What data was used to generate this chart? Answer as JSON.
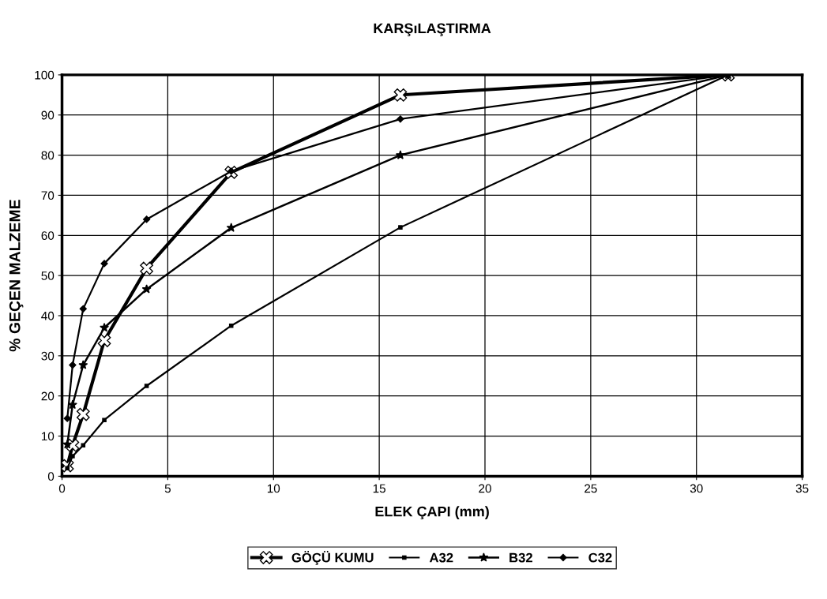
{
  "chart_data": {
    "type": "line",
    "title": "KARŞıLAŞTIRMA",
    "xlabel": "ELEK ÇAPI (mm)",
    "ylabel": "% GEÇEN MALZEME",
    "x": [
      0.25,
      0.5,
      1,
      2,
      4,
      8,
      16,
      31.5
    ],
    "series": [
      {
        "name": "GÖÇÜ KUMU",
        "color": "#000000",
        "marker": "cross",
        "values": [
          2.6,
          7.7,
          15.4,
          33.8,
          51.8,
          75.7,
          95,
          100
        ]
      },
      {
        "name": "A32",
        "color": "#000000",
        "marker": "square",
        "values": [
          2,
          5,
          7.7,
          14,
          22.5,
          37.5,
          62,
          100
        ]
      },
      {
        "name": "B32",
        "color": "#000000",
        "marker": "star",
        "values": [
          7.9,
          17.8,
          27.7,
          37,
          46.6,
          61.9,
          80,
          100
        ]
      },
      {
        "name": "C32",
        "color": "#000000",
        "marker": "diamond",
        "values": [
          14.4,
          27.7,
          41.7,
          53,
          64,
          76,
          89,
          100
        ]
      }
    ],
    "xlim": [
      0,
      35
    ],
    "xticks": [
      0,
      5,
      10,
      15,
      20,
      25,
      30,
      35
    ],
    "ylim": [
      0,
      100
    ],
    "yticks": [
      0,
      10,
      20,
      30,
      40,
      50,
      60,
      70,
      80,
      90,
      100
    ],
    "grid": true,
    "legend": "bottom",
    "line_style": "solid"
  }
}
